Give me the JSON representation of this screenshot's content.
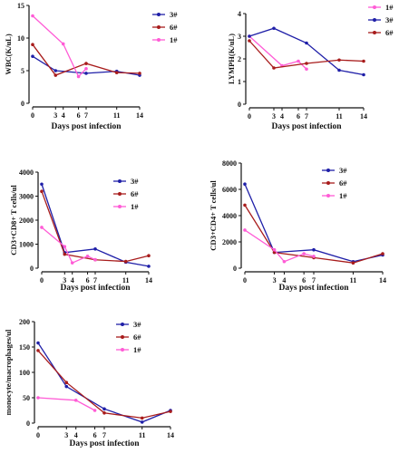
{
  "chart_data": [
    {
      "id": "wbc",
      "type": "line",
      "title": "",
      "xlabel": "Days post infection",
      "ylabel": "WBC(K/uL)",
      "x_ticks": [
        0,
        3,
        4,
        6,
        7,
        11,
        14
      ],
      "y_ticks": [
        0,
        5,
        10,
        15
      ],
      "ylim": [
        0,
        15
      ],
      "legend_position": "top-right",
      "series": [
        {
          "name": "3#",
          "color": "#1f1fa8",
          "x": [
            0,
            3,
            7,
            11,
            14
          ],
          "y": [
            7.2,
            5.0,
            4.6,
            4.9,
            4.3
          ]
        },
        {
          "name": "6#",
          "color": "#a81c1c",
          "x": [
            0,
            3,
            7,
            11,
            14
          ],
          "y": [
            9.0,
            4.3,
            6.1,
            4.7,
            4.6
          ]
        },
        {
          "name": "1#",
          "color": "#ff5cd6",
          "x": [
            0,
            4,
            6,
            7
          ],
          "y": [
            13.4,
            9.1,
            4.1,
            5.3
          ]
        }
      ]
    },
    {
      "id": "lymph",
      "type": "line",
      "title": "",
      "xlabel": "Days post infection",
      "ylabel": "LYMPH(K/uL)",
      "x_ticks": [
        0,
        3,
        4,
        6,
        7,
        11,
        14
      ],
      "y_ticks": [
        0,
        1,
        2,
        3,
        4
      ],
      "ylim": [
        0,
        4
      ],
      "legend_position": "top-right",
      "series": [
        {
          "name": "1#",
          "color": "#ff5cd6",
          "x": [
            0,
            4,
            6,
            7
          ],
          "y": [
            3.0,
            1.7,
            1.9,
            1.55
          ]
        },
        {
          "name": "3#",
          "color": "#1f1fa8",
          "x": [
            0,
            3,
            7,
            11,
            14
          ],
          "y": [
            3.0,
            3.35,
            2.7,
            1.5,
            1.3
          ]
        },
        {
          "name": "6#",
          "color": "#a81c1c",
          "x": [
            0,
            3,
            7,
            11,
            14
          ],
          "y": [
            2.8,
            1.6,
            1.8,
            1.95,
            1.9
          ]
        }
      ]
    },
    {
      "id": "cd8",
      "type": "line",
      "title": "",
      "xlabel": "Days post infection",
      "ylabel": "CD3+CD8+ T cells/ul",
      "x_ticks": [
        0,
        3,
        4,
        6,
        7,
        11,
        14
      ],
      "y_ticks": [
        0,
        1000,
        2000,
        3000,
        4000
      ],
      "ylim": [
        0,
        4000
      ],
      "legend_position": "top-right",
      "series": [
        {
          "name": "3#",
          "color": "#1f1fa8",
          "x": [
            0,
            3,
            7,
            11,
            14
          ],
          "y": [
            3500,
            650,
            800,
            250,
            80
          ]
        },
        {
          "name": "6#",
          "color": "#a81c1c",
          "x": [
            0,
            3,
            7,
            11,
            14
          ],
          "y": [
            3200,
            580,
            350,
            280,
            520
          ]
        },
        {
          "name": "1#",
          "color": "#ff5cd6",
          "x": [
            0,
            3,
            4,
            6,
            7
          ],
          "y": [
            1700,
            900,
            220,
            500,
            350
          ]
        }
      ]
    },
    {
      "id": "cd4",
      "type": "line",
      "title": "",
      "xlabel": "Days post infection",
      "ylabel": "CD3+CD4+ T cells/ul",
      "x_ticks": [
        0,
        3,
        4,
        6,
        7,
        11,
        14
      ],
      "y_ticks": [
        0,
        2000,
        4000,
        6000,
        8000
      ],
      "ylim": [
        0,
        8000
      ],
      "legend_position": "top-right",
      "series": [
        {
          "name": "3#",
          "color": "#1f1fa8",
          "x": [
            0,
            3,
            7,
            11,
            14
          ],
          "y": [
            6400,
            1200,
            1400,
            500,
            1000
          ]
        },
        {
          "name": "6#",
          "color": "#a81c1c",
          "x": [
            0,
            3,
            7,
            11,
            14
          ],
          "y": [
            4800,
            1200,
            800,
            400,
            1100
          ]
        },
        {
          "name": "1#",
          "color": "#ff5cd6",
          "x": [
            0,
            3,
            4,
            6,
            7
          ],
          "y": [
            2900,
            1400,
            500,
            1100,
            900
          ]
        }
      ]
    },
    {
      "id": "mono",
      "type": "line",
      "title": "",
      "xlabel": "Days post infection",
      "ylabel": "monocyte/macrophages/ul",
      "x_ticks": [
        0,
        3,
        4,
        6,
        7,
        11,
        14
      ],
      "y_ticks": [
        0,
        50,
        100,
        150,
        200
      ],
      "ylim": [
        0,
        200
      ],
      "legend_position": "top-right",
      "series": [
        {
          "name": "3#",
          "color": "#1f1fa8",
          "x": [
            0,
            3,
            7,
            11,
            14
          ],
          "y": [
            158,
            72,
            28,
            2,
            25
          ]
        },
        {
          "name": "6#",
          "color": "#a81c1c",
          "x": [
            0,
            3,
            7,
            11,
            14
          ],
          "y": [
            143,
            80,
            20,
            10,
            23
          ]
        },
        {
          "name": "1#",
          "color": "#ff5cd6",
          "x": [
            0,
            4,
            6
          ],
          "y": [
            50,
            45,
            25
          ]
        }
      ]
    }
  ]
}
